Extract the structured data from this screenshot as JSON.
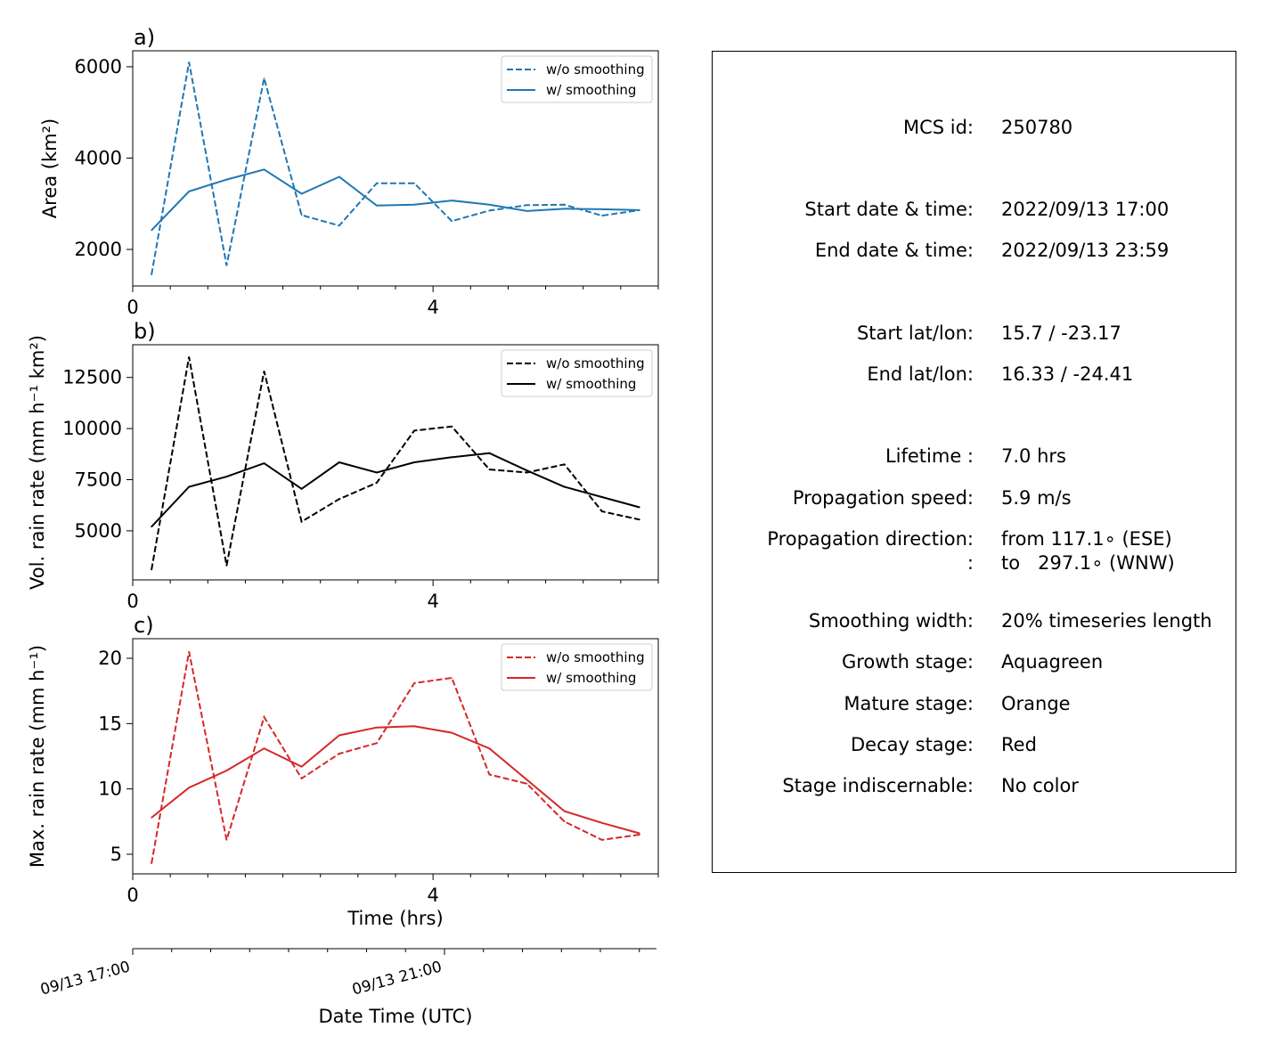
{
  "chart_data": [
    {
      "type": "line",
      "panel_label": "a)",
      "ylabel": "Area  (km²)",
      "xticks": [
        "0",
        "4"
      ],
      "yticks": [
        "2000",
        "4000",
        "6000"
      ],
      "ylim": [
        1200,
        6350
      ],
      "xlim": [
        0,
        7
      ],
      "legend_position": "top-right",
      "color": "#1f77b4",
      "x": [
        0.25,
        0.75,
        1.25,
        1.75,
        2.25,
        2.75,
        3.25,
        3.75,
        4.25,
        4.75,
        5.25,
        5.75,
        6.25,
        6.75
      ],
      "series": [
        {
          "name": "w/o smoothing",
          "style": "dashed",
          "values": [
            1450,
            6100,
            1650,
            5750,
            2750,
            2520,
            3450,
            3450,
            2620,
            2850,
            2970,
            2980,
            2740,
            2860
          ]
        },
        {
          "name": "w/ smoothing",
          "style": "solid",
          "values": [
            2420,
            3270,
            3530,
            3750,
            3220,
            3590,
            2960,
            2980,
            3070,
            2980,
            2840,
            2890,
            2880,
            2860
          ]
        }
      ]
    },
    {
      "type": "line",
      "panel_label": "b)",
      "ylabel": "Vol. rain rate (mm h⁻¹ km²)",
      "xticks": [
        "0",
        "4"
      ],
      "yticks": [
        "5000",
        "7500",
        "10000",
        "12500"
      ],
      "ylim": [
        2600,
        14100
      ],
      "xlim": [
        0,
        7
      ],
      "legend_position": "top-right",
      "color": "#000000",
      "x": [
        0.25,
        0.75,
        1.25,
        1.75,
        2.25,
        2.75,
        3.25,
        3.75,
        4.25,
        4.75,
        5.25,
        5.75,
        6.25,
        6.75
      ],
      "series": [
        {
          "name": "w/o smoothing",
          "style": "dashed",
          "values": [
            3100,
            13500,
            3300,
            12800,
            5450,
            6550,
            7350,
            9900,
            10100,
            8000,
            7850,
            8250,
            5950,
            5550
          ]
        },
        {
          "name": "w/ smoothing",
          "style": "solid",
          "values": [
            5200,
            7150,
            7650,
            8300,
            7050,
            8350,
            7850,
            8350,
            8600,
            8800,
            7950,
            7150,
            6650,
            6150
          ]
        }
      ]
    },
    {
      "type": "line",
      "panel_label": "c)",
      "ylabel": "Max. rain rate  (mm h⁻¹)",
      "xlabel": "Time (hrs)",
      "xticks": [
        "0",
        "4"
      ],
      "yticks": [
        "5",
        "10",
        "15",
        "20"
      ],
      "ylim": [
        3.5,
        21.5
      ],
      "xlim": [
        0,
        7
      ],
      "legend_position": "top-right",
      "color": "#d62728",
      "x": [
        0.25,
        0.75,
        1.25,
        1.75,
        2.25,
        2.75,
        3.25,
        3.75,
        4.25,
        4.75,
        5.25,
        5.75,
        6.25,
        6.75
      ],
      "series": [
        {
          "name": "w/o smoothing",
          "style": "dashed",
          "values": [
            4.3,
            20.5,
            6.1,
            15.5,
            10.8,
            12.7,
            13.5,
            18.1,
            18.5,
            11.1,
            10.4,
            7.5,
            6.1,
            6.5
          ]
        },
        {
          "name": "w/ smoothing",
          "style": "solid",
          "values": [
            7.8,
            10.1,
            11.4,
            13.1,
            11.7,
            14.1,
            14.7,
            14.8,
            14.3,
            13.1,
            10.7,
            8.3,
            7.4,
            6.6
          ]
        }
      ]
    },
    {
      "type": "axis",
      "xlabel": "Date Time (UTC)",
      "xticks": [
        "09/13 17:00",
        "09/13 21:00"
      ]
    }
  ],
  "info": [
    {
      "label": "MCS id:",
      "value": "250780"
    },
    {
      "label": "Start date & time:",
      "value": "2022/09/13 17:00"
    },
    {
      "label": "End date & time:",
      "value": "2022/09/13 23:59"
    },
    {
      "label": "Start lat/lon:",
      "value": "15.7 / -23.17"
    },
    {
      "label": "End lat/lon:",
      "value": "16.33 / -24.41"
    },
    {
      "label": "Lifetime :",
      "value": "7.0 hrs"
    },
    {
      "label": "Propagation speed:",
      "value": "5.9 m/s"
    },
    {
      "label": "Propagation direction:",
      "value": "from 117.1∘ (ESE)"
    },
    {
      "label": ":",
      "value": "to   297.1∘ (WNW)"
    },
    {
      "label": "Smoothing width:",
      "value": "20% timeseries length"
    },
    {
      "label": "Growth stage:",
      "value": "Aquagreen"
    },
    {
      "label": "Mature stage:",
      "value": "Orange"
    },
    {
      "label": "Decay stage:",
      "value": "Red"
    },
    {
      "label": "Stage indiscernable:",
      "value": "No color"
    }
  ]
}
